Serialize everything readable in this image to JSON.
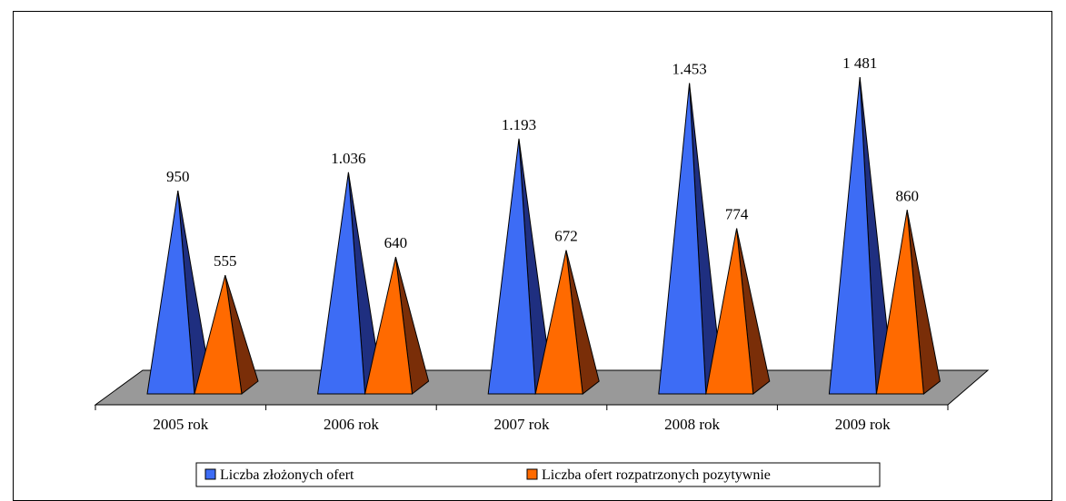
{
  "chart_data": {
    "type": "bar",
    "style": "3d-pyramid",
    "categories": [
      "2005 rok",
      "2006 rok",
      "2007 rok",
      "2008 rok",
      "2009 rok"
    ],
    "series": [
      {
        "name": "Liczba złożonych ofert",
        "values": [
          950,
          1036,
          1193,
          1453,
          1481
        ],
        "labels": [
          "950",
          "1.036",
          "1.193",
          "1.453",
          "1 481"
        ],
        "color_front": "#3d6cf5",
        "color_side": "#1f2f80"
      },
      {
        "name": "Liczba ofert rozpatrzonych pozytywnie",
        "values": [
          555,
          640,
          672,
          774,
          860
        ],
        "labels": [
          "555",
          "640",
          "672",
          "774",
          "860"
        ],
        "color_front": "#ff6a00",
        "color_side": "#7a2e08"
      }
    ],
    "floor_color": "#999999",
    "grid": false,
    "legend_position": "bottom"
  }
}
